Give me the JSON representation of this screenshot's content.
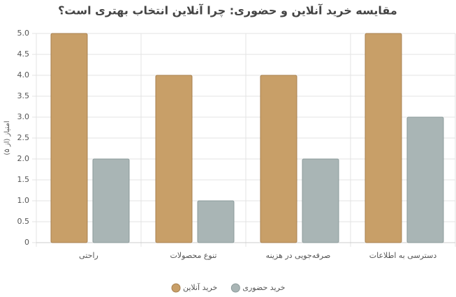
{
  "chart_data": {
    "type": "bar",
    "title": "مقایسه خرید آنلاین و حضوری: چرا آنلاین انتخاب بهتری است؟",
    "y_label": "امتیاز (از ۵)",
    "categories": [
      "راحتی",
      "تنوع محصولات",
      "صرفه‌جویی در هزینه",
      "دسترسی به اطلاعات"
    ],
    "series": [
      {
        "name": "خرید آنلاین",
        "color": "#c89f68",
        "border": "#a88150",
        "values": [
          5,
          4,
          4,
          5
        ]
      },
      {
        "name": "خرید حضوری",
        "color": "#a9b5b5",
        "border": "#8c9b9b",
        "values": [
          2,
          1,
          2,
          3
        ]
      }
    ],
    "ylim": [
      0,
      5
    ],
    "yticks": [
      0,
      0.5,
      {
        "value": 1,
        "label": "1.0"
      },
      1.5,
      {
        "value": 2,
        "label": "2.0"
      },
      2.5,
      {
        "value": 3,
        "label": "3.0"
      },
      3.5,
      {
        "value": 4,
        "label": "4.0"
      },
      4.5,
      {
        "value": 5,
        "label": "5.0"
      }
    ],
    "grid": true,
    "legend": "bottom"
  }
}
